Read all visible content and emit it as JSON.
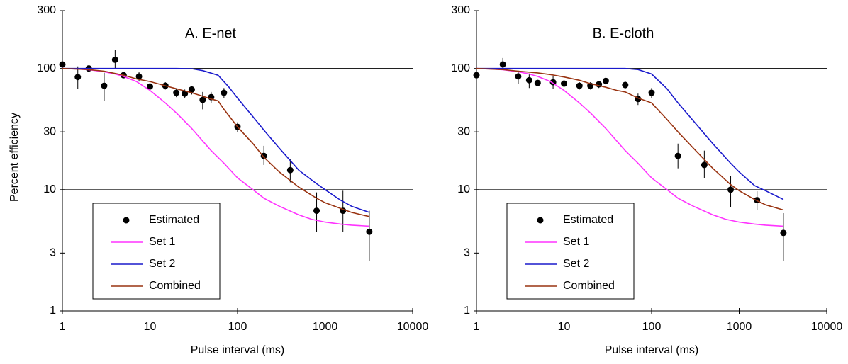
{
  "shared": {
    "ylabel": "Percent efficiency",
    "xlabel": "Pulse interval (ms)",
    "x_scale": "log",
    "y_scale": "log",
    "xlim": [
      1,
      10000
    ],
    "ylim": [
      1,
      300
    ],
    "x_ticks": [
      1,
      10,
      100,
      1000,
      10000
    ],
    "y_ticks": [
      1,
      3,
      10,
      30,
      100,
      300
    ],
    "gridlines_y": [
      10,
      100
    ],
    "colors": {
      "estimated": "#000000",
      "set1": "#ff33ff",
      "set2": "#1a1acc",
      "combined": "#993311"
    }
  },
  "chart_data": [
    {
      "type": "scatter",
      "title": "A. E-net",
      "legend": {
        "placement": "bottom-left",
        "entries": [
          "Estimated",
          "Set 1",
          "Set 2",
          "Combined"
        ]
      },
      "series": [
        {
          "name": "Estimated",
          "kind": "points",
          "x": [
            1,
            1.5,
            2,
            3,
            4,
            5,
            7.5,
            10,
            15,
            20,
            25,
            30,
            40,
            50,
            70,
            100,
            200,
            400,
            800,
            1600,
            3200
          ],
          "y": [
            108,
            85,
            100,
            72,
            118,
            88,
            86,
            71,
            72,
            63,
            62,
            67,
            55,
            58,
            63,
            33,
            19,
            14.5,
            6.7,
            6.7,
            4.5
          ],
          "ylow": [
            92,
            68,
            97,
            54,
            99,
            84,
            78,
            66,
            67,
            58,
            57,
            61,
            46,
            52,
            57,
            30,
            16,
            11.5,
            4.5,
            4.5,
            2.6
          ],
          "yhigh": [
            124,
            104,
            103,
            92,
            142,
            92,
            94,
            76,
            77,
            68,
            67,
            72,
            64,
            64,
            69,
            36,
            23,
            18,
            9.5,
            9.8,
            6.7
          ]
        },
        {
          "name": "Set 1",
          "kind": "line",
          "x": [
            1,
            1.5,
            2,
            3,
            4,
            5,
            7,
            10,
            15,
            20,
            30,
            50,
            70,
            100,
            150,
            200,
            300,
            500,
            700,
            1000,
            1500,
            2000,
            3200
          ],
          "y": [
            100,
            99,
            97.5,
            94,
            90,
            86,
            78,
            66,
            52,
            43,
            32,
            21,
            16.5,
            12.5,
            10,
            8.5,
            7.3,
            6.2,
            5.7,
            5.4,
            5.2,
            5.1,
            5.0
          ]
        },
        {
          "name": "Set 2",
          "kind": "line",
          "x": [
            1,
            5,
            10,
            20,
            30,
            40,
            60,
            80,
            100,
            150,
            200,
            300,
            500,
            800,
            1000,
            1500,
            2000,
            3200
          ],
          "y": [
            100,
            100,
            100,
            100,
            99.5,
            96,
            88,
            70,
            57,
            40,
            31,
            22,
            14.5,
            11.2,
            10,
            8.2,
            7.3,
            6.5
          ]
        },
        {
          "name": "Combined",
          "kind": "line",
          "x": [
            1,
            2,
            3,
            5,
            7,
            10,
            15,
            20,
            30,
            40,
            50,
            60,
            70,
            100,
            150,
            200,
            300,
            500,
            800,
            1000,
            1500,
            2000,
            3200
          ],
          "y": [
            100,
            98,
            95,
            88,
            82,
            78,
            72,
            68,
            63,
            59,
            56,
            54,
            46,
            33,
            24,
            18.5,
            14,
            10.5,
            8.5,
            7.8,
            7.0,
            6.5,
            6.0
          ]
        }
      ]
    },
    {
      "type": "scatter",
      "title": "B. E-cloth",
      "legend": {
        "placement": "bottom-left",
        "entries": [
          "Estimated",
          "Set 1",
          "Set 2",
          "Combined"
        ]
      },
      "series": [
        {
          "name": "Estimated",
          "kind": "points",
          "x": [
            1,
            2,
            3,
            4,
            5,
            7.5,
            10,
            15,
            20,
            25,
            30,
            50,
            70,
            100,
            200,
            400,
            800,
            1600,
            3200
          ],
          "y": [
            88,
            108,
            86,
            80,
            76,
            77,
            75,
            72,
            72,
            74,
            79,
            73,
            56,
            63,
            19,
            16,
            10,
            8.2,
            4.4
          ],
          "ylow": [
            73,
            97,
            75,
            69,
            72,
            68,
            71,
            67,
            67,
            69,
            73,
            68,
            50,
            57,
            15,
            12.5,
            7.2,
            6.8,
            2.6
          ],
          "yhigh": [
            104,
            122,
            96,
            91,
            80,
            86,
            79,
            77,
            77,
            79,
            85,
            78,
            62,
            69,
            24,
            21,
            13,
            9.7,
            6.4
          ]
        },
        {
          "name": "Set 1",
          "kind": "line",
          "x": [
            1,
            1.5,
            2,
            3,
            4,
            5,
            7,
            10,
            15,
            20,
            30,
            50,
            70,
            100,
            150,
            200,
            300,
            500,
            700,
            1000,
            1500,
            2000,
            3200
          ],
          "y": [
            100,
            99,
            97.5,
            94,
            90,
            86,
            78,
            66,
            52,
            43,
            32,
            21,
            16.5,
            12.5,
            10,
            8.5,
            7.3,
            6.2,
            5.7,
            5.4,
            5.2,
            5.1,
            5.0
          ]
        },
        {
          "name": "Set 2",
          "kind": "line",
          "x": [
            1,
            5,
            10,
            20,
            30,
            50,
            70,
            100,
            150,
            200,
            300,
            500,
            800,
            1000,
            1500,
            2000,
            3200
          ],
          "y": [
            100,
            100,
            100,
            100,
            100,
            100,
            98,
            90,
            68,
            52,
            37,
            24,
            16.5,
            14,
            10.8,
            9.8,
            8.3
          ]
        },
        {
          "name": "Combined",
          "kind": "line",
          "x": [
            1,
            2,
            3,
            5,
            7,
            10,
            15,
            20,
            30,
            40,
            50,
            70,
            100,
            150,
            200,
            300,
            500,
            800,
            1000,
            1500,
            2000,
            3200
          ],
          "y": [
            100,
            98,
            95,
            92,
            89,
            85,
            80,
            75,
            70,
            66,
            64,
            57,
            52,
            38,
            30,
            22,
            15,
            11,
            9.8,
            8.3,
            7.5,
            6.8
          ]
        }
      ]
    }
  ]
}
